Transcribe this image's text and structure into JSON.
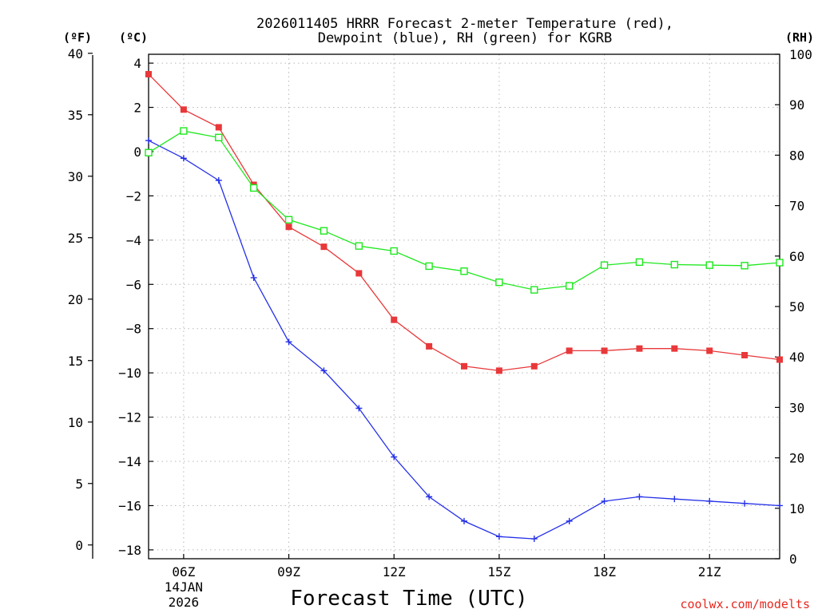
{
  "chart_data": {
    "type": "line",
    "title_line1": "2026011405 HRRR Forecast 2-meter Temperature (red),",
    "title_line2": "Dewpoint (blue), RH (green) for KGRB",
    "xlabel": "Forecast Time (UTC)",
    "credit": "coolwx.com/modelts",
    "unit_labels": {
      "left_f": "(ºF)",
      "left_c": "(ºC)",
      "right": "(RH)"
    },
    "x_hours": [
      5,
      6,
      7,
      8,
      9,
      10,
      11,
      12,
      13,
      14,
      15,
      16,
      17,
      18,
      19,
      20,
      21,
      22,
      23
    ],
    "xlim": [
      5,
      23
    ],
    "x_ticks": [
      {
        "hour": 6,
        "label": "06Z",
        "sub1": "14JAN",
        "sub2": "2026"
      },
      {
        "hour": 9,
        "label": "09Z"
      },
      {
        "hour": 12,
        "label": "12Z"
      },
      {
        "hour": 15,
        "label": "15Z"
      },
      {
        "hour": 18,
        "label": "18Z"
      },
      {
        "hour": 21,
        "label": "21Z"
      }
    ],
    "ylim_c": [
      -18.4,
      4.4
    ],
    "c_ticks": [
      "4",
      "2",
      "0",
      "-2",
      "-4",
      "-6",
      "-8",
      "-10",
      "-12",
      "-14",
      "-16",
      "-18"
    ],
    "f_ticks": [
      "40",
      "35",
      "30",
      "25",
      "20",
      "15",
      "10",
      "5",
      "0"
    ],
    "rh_ticks": [
      "100",
      "90",
      "80",
      "70",
      "60",
      "50",
      "40",
      "30",
      "20",
      "10",
      "0"
    ],
    "series": [
      {
        "name": "Temperature",
        "color": "#e8383a",
        "marker": "filled-square",
        "values": [
          3.5,
          1.9,
          1.1,
          -1.5,
          -3.4,
          -4.3,
          -5.5,
          -7.6,
          -8.8,
          -9.7,
          -9.9,
          -9.7,
          -9.0,
          -9.0,
          -8.9,
          -8.9,
          -9.0,
          -9.2,
          -9.4
        ]
      },
      {
        "name": "Dewpoint",
        "color": "#2530e8",
        "marker": "plus",
        "values": [
          0.5,
          -0.3,
          -1.3,
          -5.7,
          -8.6,
          -9.9,
          -11.6,
          -13.8,
          -15.6,
          -16.7,
          -17.4,
          -17.5,
          -16.7,
          -15.8,
          -15.6,
          -15.7,
          -15.8,
          -15.9,
          -16.0
        ]
      },
      {
        "name": "RH",
        "color": "#1ee81e",
        "marker": "open-square",
        "values": [
          80.5,
          84.8,
          83.5,
          73.5,
          67.2,
          65.0,
          62.0,
          61.0,
          58.0,
          57.0,
          54.8,
          53.3,
          54.1,
          58.2,
          58.8,
          58.3,
          58.2,
          58.1,
          58.7
        ]
      }
    ]
  }
}
